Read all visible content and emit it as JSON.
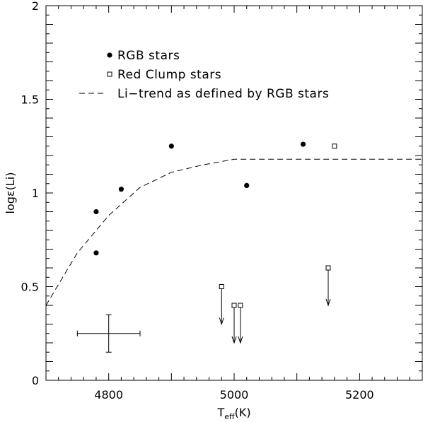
{
  "chart_data": {
    "type": "scatter",
    "xlabel": "T_eff(K)",
    "xlabel_main": "T",
    "xlabel_sub": "eff",
    "xlabel_unit": "(K)",
    "ylabel": "logε(Li)",
    "xlim": [
      4700,
      5300
    ],
    "ylim": [
      0,
      2
    ],
    "x_ticks": [
      4800,
      5000,
      5200
    ],
    "y_ticks": [
      0,
      0.5,
      1,
      1.5,
      2
    ],
    "y_tick_labels": [
      "0",
      "0.5",
      "1",
      "1.5",
      "2"
    ],
    "grid": false,
    "legend_position": "top-left",
    "series": [
      {
        "name": "RGB stars",
        "marker": "filled-circle",
        "points": [
          {
            "x": 4780,
            "y": 0.9
          },
          {
            "x": 4780,
            "y": 0.68
          },
          {
            "x": 4820,
            "y": 1.02
          },
          {
            "x": 4900,
            "y": 1.25
          },
          {
            "x": 5020,
            "y": 1.04
          },
          {
            "x": 5110,
            "y": 1.26
          }
        ]
      },
      {
        "name": "Red Clump stars",
        "marker": "open-square",
        "points": [
          {
            "x": 5160,
            "y": 1.25
          }
        ]
      },
      {
        "name": "Li−trend as defined by RGB stars",
        "marker": "dashed-line",
        "points": [
          {
            "x": 4700,
            "y": 0.4
          },
          {
            "x": 4750,
            "y": 0.68
          },
          {
            "x": 4800,
            "y": 0.88
          },
          {
            "x": 4850,
            "y": 1.03
          },
          {
            "x": 4900,
            "y": 1.11
          },
          {
            "x": 4950,
            "y": 1.15
          },
          {
            "x": 5000,
            "y": 1.18
          },
          {
            "x": 5300,
            "y": 1.18
          }
        ]
      }
    ],
    "upper_limits": [
      {
        "x": 4980,
        "y": 0.5,
        "to": 0.3
      },
      {
        "x": 5000,
        "y": 0.4,
        "to": 0.2
      },
      {
        "x": 5010,
        "y": 0.4,
        "to": 0.2
      },
      {
        "x": 5150,
        "y": 0.6,
        "to": 0.4
      }
    ],
    "error_bar": {
      "x": 4800,
      "y": 0.25,
      "x_err": 50,
      "y_err": 0.1
    }
  }
}
